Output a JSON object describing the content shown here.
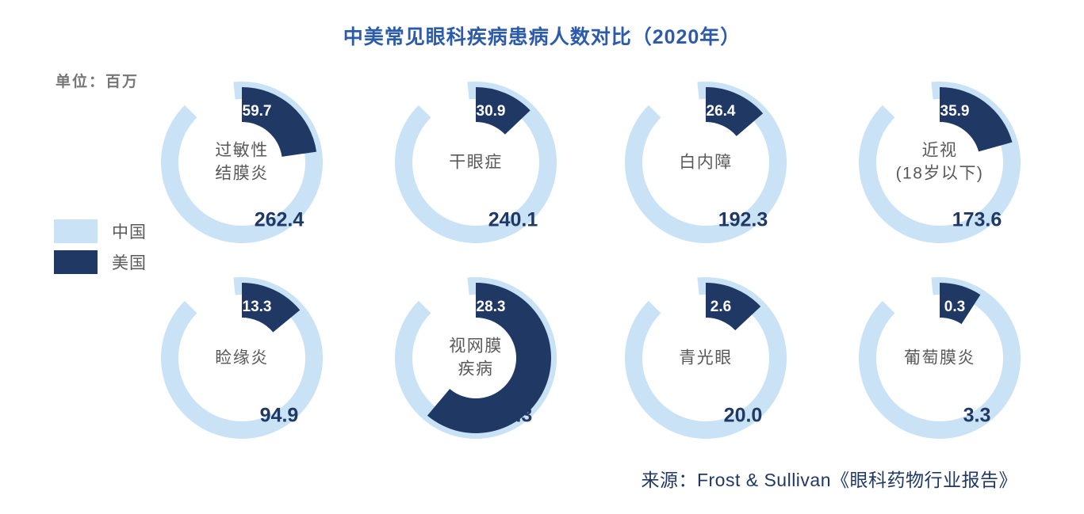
{
  "title": "中美常见眼科疾病患病人数对比（2020年）",
  "unit_label": "单位：百万",
  "legend": [
    {
      "label": "中国",
      "color": "#C9E2F6"
    },
    {
      "label": "美国",
      "color": "#1F3864"
    }
  ],
  "source": "来源：Frost & Sullivan《眼科药物行业报告》",
  "colors": {
    "china_arc": "#C9E2F6",
    "us_arc": "#1F3864",
    "title_blue": "#2D5BAC",
    "label_grey": "#595959",
    "value_navy": "#1F3864",
    "unit_grey": "#767676",
    "source_navy": "#203864",
    "us_value_text": "#FFFFFF",
    "background": "#FFFFFF"
  },
  "chart_data": {
    "type": "donut",
    "subtype": "paired-donut-comparison-grid",
    "title": "中美常见眼科疾病患病人数对比（2020年）",
    "unit": "百万",
    "series_names": [
      "中国",
      "美国"
    ],
    "grid": {
      "rows": 2,
      "cols": 4
    },
    "items": [
      {
        "label": "过敏性结膜炎",
        "label_lines": [
          "过敏性",
          "结膜炎"
        ],
        "china": 262.4,
        "us": 59.7,
        "china_display": "262.4",
        "us_display": "59.7"
      },
      {
        "label": "干眼症",
        "label_lines": [
          "干眼症"
        ],
        "china": 240.1,
        "us": 30.9,
        "china_display": "240.1",
        "us_display": "30.9"
      },
      {
        "label": "白内障",
        "label_lines": [
          "白内障"
        ],
        "china": 192.3,
        "us": 26.4,
        "china_display": "192.3",
        "us_display": "26.4"
      },
      {
        "label": "近视（18岁以下）",
        "label_lines": [
          "近视",
          "(18岁以下)"
        ],
        "china": 173.6,
        "us": 35.9,
        "china_display": "173.6",
        "us_display": "35.9"
      },
      {
        "label": "睑缘炎",
        "label_lines": [
          "睑缘炎"
        ],
        "china": 94.9,
        "us": 13.3,
        "china_display": "94.9",
        "us_display": "13.3"
      },
      {
        "label": "视网膜疾病",
        "label_lines": [
          "视网膜",
          "疾病"
        ],
        "china": 46.3,
        "us": 28.3,
        "china_display": "46.3",
        "us_display": "28.3"
      },
      {
        "label": "青光眼",
        "label_lines": [
          "青光眼"
        ],
        "china": 20.0,
        "us": 2.6,
        "china_display": "20.0",
        "us_display": "2.6"
      },
      {
        "label": "葡萄膜炎",
        "label_lines": [
          "葡萄膜炎"
        ],
        "china": 3.3,
        "us": 0.3,
        "china_display": "3.3",
        "us_display": "0.3"
      }
    ],
    "encoding_note": "每个圆环：浅蓝弧为中国（固定装饰弧，缺口在左上方），深蓝弧自12点顺时针，弧长 = 美国/中国 × 360°",
    "legend_position": "left-middle"
  }
}
